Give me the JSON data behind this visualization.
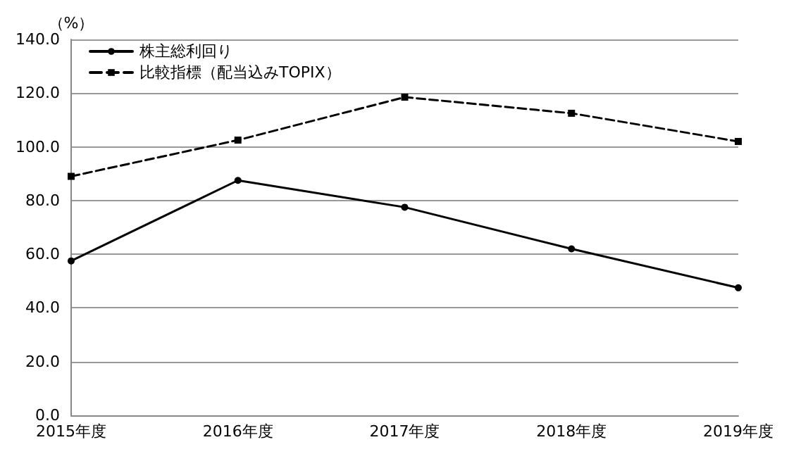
{
  "chart_data": {
    "type": "line",
    "ylabel": "（%）",
    "categories": [
      "2015年度",
      "2016年度",
      "2017年度",
      "2018年度",
      "2019年度"
    ],
    "series": [
      {
        "name": "株主総利回り",
        "color": "#000000",
        "values": [
          57.5,
          87.5,
          77.5,
          62.0,
          47.5
        ],
        "marker": "circle",
        "line_style": "solid"
      },
      {
        "name": "比較指標（配当込みTOPIX）",
        "color": "#000000",
        "values": [
          89.0,
          102.5,
          118.5,
          112.5,
          102.0
        ],
        "marker": "square",
        "line_style": "dashed"
      }
    ],
    "ylim": [
      0,
      140
    ],
    "yticks": [
      {
        "value": 0,
        "label": "0.0"
      },
      {
        "value": 20,
        "label": "20.0"
      },
      {
        "value": 40,
        "label": "40.0"
      },
      {
        "value": 60,
        "label": "60.0"
      },
      {
        "value": 80,
        "label": "80.0"
      },
      {
        "value": 100,
        "label": "100.0"
      },
      {
        "value": 120,
        "label": "120.0"
      },
      {
        "value": 140,
        "label": "140.0"
      }
    ],
    "grid": "y",
    "legend": "top left"
  }
}
